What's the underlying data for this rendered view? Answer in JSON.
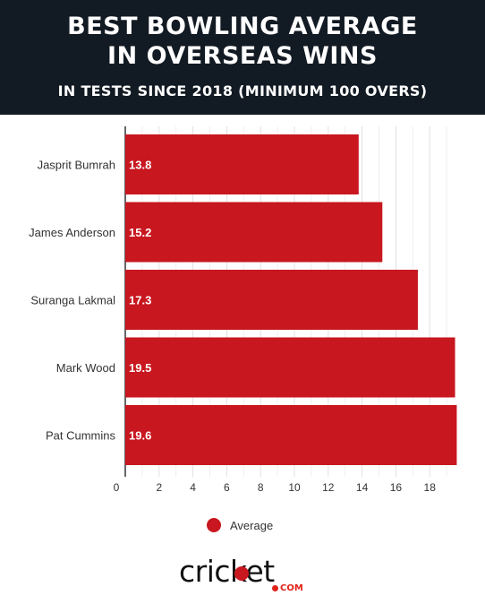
{
  "header": {
    "title_line_1": "BEST BOWLING AVERAGE",
    "title_line_2": "IN OVERSEAS WINS",
    "subtitle": "IN TESTS SINCE 2018 (MINIMUM 100 OVERS)"
  },
  "colors": {
    "header_background": "#121a23",
    "bar": "#c8171f",
    "grid": "#e3e3e3",
    "brand_red": "#e2231a"
  },
  "logo": {
    "word": "cricket",
    "suffix": "COM"
  },
  "chart_data": {
    "type": "bar",
    "orientation": "horizontal",
    "categories": [
      "Jasprit Bumrah",
      "James Anderson",
      "Suranga Lakmal",
      "Mark Wood",
      "Pat Cummins"
    ],
    "series": [
      {
        "name": "Average",
        "values": [
          13.8,
          15.2,
          17.3,
          19.5,
          19.6
        ],
        "color": "#c8171f"
      }
    ],
    "data_labels": [
      "13.8",
      "15.2",
      "17.3",
      "19.5",
      "19.6"
    ],
    "x_ticks": [
      "0",
      "2",
      "4",
      "6",
      "8",
      "10",
      "12",
      "14",
      "16",
      "18"
    ],
    "xlim": [
      0,
      20
    ],
    "title": "BEST BOWLING AVERAGE IN OVERSEAS WINS",
    "subtitle": "IN TESTS SINCE 2018 (MINIMUM 100 OVERS)",
    "xlabel": "",
    "ylabel": "",
    "grid": true,
    "legend": {
      "position": "bottom-center",
      "entries": [
        "Average"
      ]
    }
  }
}
